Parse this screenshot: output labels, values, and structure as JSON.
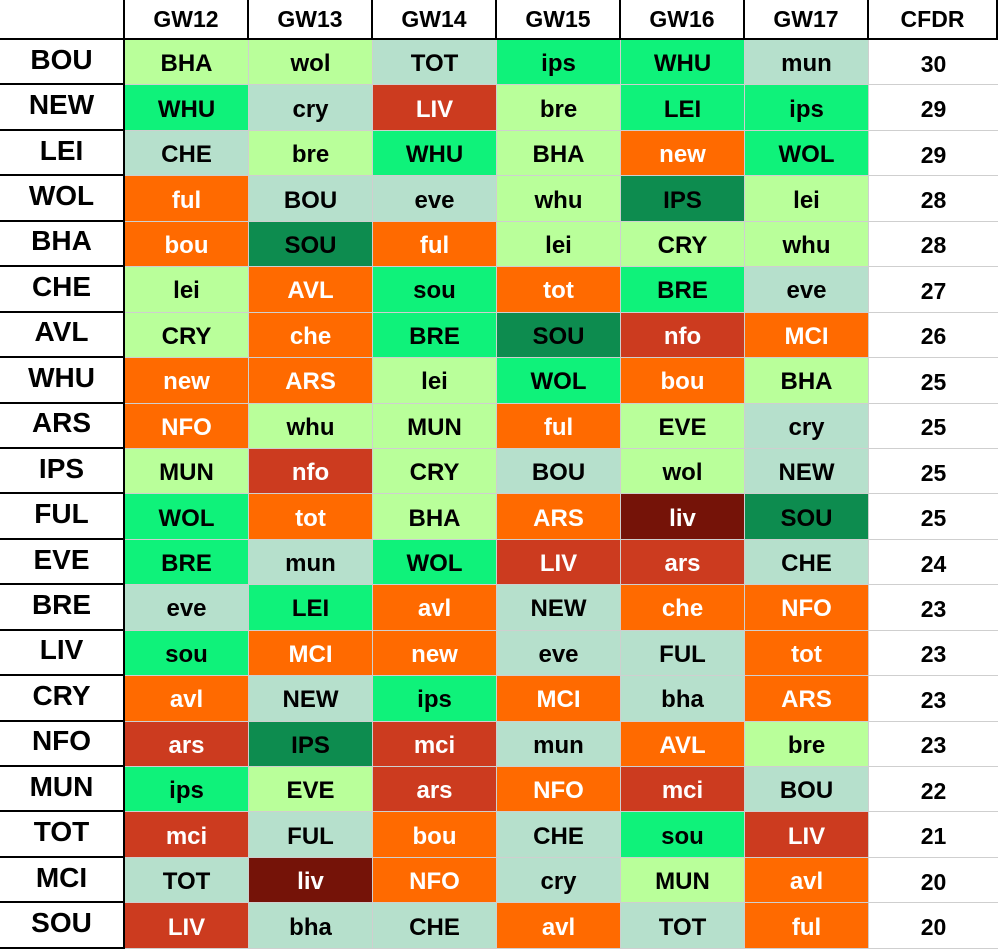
{
  "headers": [
    "",
    "GW12",
    "GW13",
    "GW14",
    "GW15",
    "GW16",
    "GW17",
    "CFDR"
  ],
  "rows": [
    {
      "team": "BOU",
      "fixtures": [
        [
          "BHA",
          "lgn"
        ],
        [
          "wol",
          "lgn"
        ],
        [
          "TOT",
          "mint"
        ],
        [
          "ips",
          "brt"
        ],
        [
          "WHU",
          "brt"
        ],
        [
          "mun",
          "mint"
        ]
      ],
      "cfdr": "30"
    },
    {
      "team": "NEW",
      "fixtures": [
        [
          "WHU",
          "brt"
        ],
        [
          "cry",
          "mint"
        ],
        [
          "LIV",
          "red"
        ],
        [
          "bre",
          "lgn"
        ],
        [
          "LEI",
          "brt"
        ],
        [
          "ips",
          "brt"
        ]
      ],
      "cfdr": "29"
    },
    {
      "team": "LEI",
      "fixtures": [
        [
          "CHE",
          "mint"
        ],
        [
          "bre",
          "lgn"
        ],
        [
          "WHU",
          "brt"
        ],
        [
          "BHA",
          "lgn"
        ],
        [
          "new",
          "org"
        ],
        [
          "WOL",
          "brt"
        ]
      ],
      "cfdr": "29"
    },
    {
      "team": "WOL",
      "fixtures": [
        [
          "ful",
          "org"
        ],
        [
          "BOU",
          "mint"
        ],
        [
          "eve",
          "mint"
        ],
        [
          "whu",
          "lgn"
        ],
        [
          "IPS",
          "dkg"
        ],
        [
          "lei",
          "lgn"
        ]
      ],
      "cfdr": "28"
    },
    {
      "team": "BHA",
      "fixtures": [
        [
          "bou",
          "org"
        ],
        [
          "SOU",
          "dkg"
        ],
        [
          "ful",
          "org"
        ],
        [
          "lei",
          "lgn"
        ],
        [
          "CRY",
          "lgn"
        ],
        [
          "whu",
          "lgn"
        ]
      ],
      "cfdr": "28"
    },
    {
      "team": "CHE",
      "fixtures": [
        [
          "lei",
          "lgn"
        ],
        [
          "AVL",
          "org"
        ],
        [
          "sou",
          "brt"
        ],
        [
          "tot",
          "org"
        ],
        [
          "BRE",
          "brt"
        ],
        [
          "eve",
          "mint"
        ]
      ],
      "cfdr": "27"
    },
    {
      "team": "AVL",
      "fixtures": [
        [
          "CRY",
          "lgn"
        ],
        [
          "che",
          "org"
        ],
        [
          "BRE",
          "brt"
        ],
        [
          "SOU",
          "dkg"
        ],
        [
          "nfo",
          "red"
        ],
        [
          "MCI",
          "org"
        ]
      ],
      "cfdr": "26"
    },
    {
      "team": "WHU",
      "fixtures": [
        [
          "new",
          "org"
        ],
        [
          "ARS",
          "org"
        ],
        [
          "lei",
          "lgn"
        ],
        [
          "WOL",
          "brt"
        ],
        [
          "bou",
          "org"
        ],
        [
          "BHA",
          "lgn"
        ]
      ],
      "cfdr": "25"
    },
    {
      "team": "ARS",
      "fixtures": [
        [
          "NFO",
          "org"
        ],
        [
          "whu",
          "lgn"
        ],
        [
          "MUN",
          "lgn"
        ],
        [
          "ful",
          "org"
        ],
        [
          "EVE",
          "lgn"
        ],
        [
          "cry",
          "mint"
        ]
      ],
      "cfdr": "25"
    },
    {
      "team": "IPS",
      "fixtures": [
        [
          "MUN",
          "lgn"
        ],
        [
          "nfo",
          "red"
        ],
        [
          "CRY",
          "lgn"
        ],
        [
          "BOU",
          "mint"
        ],
        [
          "wol",
          "lgn"
        ],
        [
          "NEW",
          "mint"
        ]
      ],
      "cfdr": "25"
    },
    {
      "team": "FUL",
      "fixtures": [
        [
          "WOL",
          "brt"
        ],
        [
          "tot",
          "org"
        ],
        [
          "BHA",
          "lgn"
        ],
        [
          "ARS",
          "org"
        ],
        [
          "liv",
          "mar"
        ],
        [
          "SOU",
          "dkg"
        ]
      ],
      "cfdr": "25"
    },
    {
      "team": "EVE",
      "fixtures": [
        [
          "BRE",
          "brt"
        ],
        [
          "mun",
          "mint"
        ],
        [
          "WOL",
          "brt"
        ],
        [
          "LIV",
          "red"
        ],
        [
          "ars",
          "red"
        ],
        [
          "CHE",
          "mint"
        ]
      ],
      "cfdr": "24"
    },
    {
      "team": "BRE",
      "fixtures": [
        [
          "eve",
          "mint"
        ],
        [
          "LEI",
          "brt"
        ],
        [
          "avl",
          "org"
        ],
        [
          "NEW",
          "mint"
        ],
        [
          "che",
          "org"
        ],
        [
          "NFO",
          "org"
        ]
      ],
      "cfdr": "23"
    },
    {
      "team": "LIV",
      "fixtures": [
        [
          "sou",
          "brt"
        ],
        [
          "MCI",
          "org"
        ],
        [
          "new",
          "org"
        ],
        [
          "eve",
          "mint"
        ],
        [
          "FUL",
          "mint"
        ],
        [
          "tot",
          "org"
        ]
      ],
      "cfdr": "23"
    },
    {
      "team": "CRY",
      "fixtures": [
        [
          "avl",
          "org"
        ],
        [
          "NEW",
          "mint"
        ],
        [
          "ips",
          "brt"
        ],
        [
          "MCI",
          "org"
        ],
        [
          "bha",
          "mint"
        ],
        [
          "ARS",
          "org"
        ]
      ],
      "cfdr": "23"
    },
    {
      "team": "NFO",
      "fixtures": [
        [
          "ars",
          "red"
        ],
        [
          "IPS",
          "dkg"
        ],
        [
          "mci",
          "red"
        ],
        [
          "mun",
          "mint"
        ],
        [
          "AVL",
          "org"
        ],
        [
          "bre",
          "lgn"
        ]
      ],
      "cfdr": "23"
    },
    {
      "team": "MUN",
      "fixtures": [
        [
          "ips",
          "brt"
        ],
        [
          "EVE",
          "lgn"
        ],
        [
          "ars",
          "red"
        ],
        [
          "NFO",
          "org"
        ],
        [
          "mci",
          "red"
        ],
        [
          "BOU",
          "mint"
        ]
      ],
      "cfdr": "22"
    },
    {
      "team": "TOT",
      "fixtures": [
        [
          "mci",
          "red"
        ],
        [
          "FUL",
          "mint"
        ],
        [
          "bou",
          "org"
        ],
        [
          "CHE",
          "mint"
        ],
        [
          "sou",
          "brt"
        ],
        [
          "LIV",
          "red"
        ]
      ],
      "cfdr": "21"
    },
    {
      "team": "MCI",
      "fixtures": [
        [
          "TOT",
          "mint"
        ],
        [
          "liv",
          "mar"
        ],
        [
          "NFO",
          "org"
        ],
        [
          "cry",
          "mint"
        ],
        [
          "MUN",
          "lgn"
        ],
        [
          "avl",
          "org"
        ]
      ],
      "cfdr": "20"
    },
    {
      "team": "SOU",
      "fixtures": [
        [
          "LIV",
          "red"
        ],
        [
          "bha",
          "mint"
        ],
        [
          "CHE",
          "mint"
        ],
        [
          "avl",
          "org"
        ],
        [
          "TOT",
          "mint"
        ],
        [
          "ful",
          "org"
        ]
      ],
      "cfdr": "20"
    }
  ],
  "colors": {
    "lgn": "#b9ff9a",
    "mint": "#b6e0cc",
    "brt": "#0ff27a",
    "dkg": "#0d8c4f",
    "org": "#ff6a00",
    "red": "#cc3b1f",
    "mar": "#751308"
  }
}
